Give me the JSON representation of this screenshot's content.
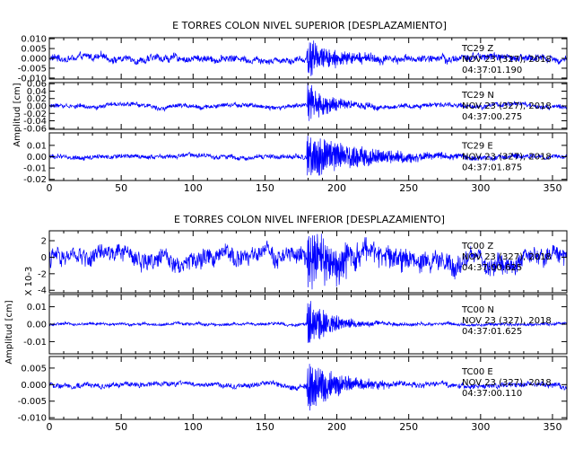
{
  "colors": {
    "trace": "#0000ff",
    "axis": "#000000",
    "background": "#ffffff"
  },
  "chart_data": [
    {
      "type": "line",
      "title": "E TORRES COLON NIVEL SUPERIOR [DESPLAZAMIENTO]",
      "ylabel": "Amplitud [cm]",
      "xlim": [
        0,
        360
      ],
      "x_ticks": [
        "0",
        "50",
        "100",
        "150",
        "200",
        "250",
        "300",
        "350"
      ],
      "channels": [
        {
          "ylim": [
            -0.0105,
            0.0105
          ],
          "y_ticks": [
            {
              "value": 0.01,
              "label": "0.010"
            },
            {
              "value": 0.005,
              "label": "0.005"
            },
            {
              "value": 0.0,
              "label": "0.000"
            },
            {
              "value": -0.005,
              "label": "-0.005"
            },
            {
              "value": -0.01,
              "label": "-0.010"
            }
          ],
          "station": "TC29",
          "component": "Z",
          "date": "NOV 23 (327), 2018",
          "time": "04:37:01.190",
          "trace": {
            "event_start": 179,
            "noise": 0.15,
            "peak": 0.95,
            "decay": 0.05
          }
        },
        {
          "ylim": [
            -0.063,
            0.063
          ],
          "y_ticks": [
            {
              "value": 0.06,
              "label": "0.06"
            },
            {
              "value": 0.04,
              "label": "0.04"
            },
            {
              "value": 0.02,
              "label": "0.02"
            },
            {
              "value": 0.0,
              "label": "0.00"
            },
            {
              "value": -0.02,
              "label": "-0.02"
            },
            {
              "value": -0.04,
              "label": "-0.04"
            },
            {
              "value": -0.06,
              "label": "-0.06"
            }
          ],
          "station": "TC29",
          "component": "N",
          "date": "NOV 23 (327), 2018",
          "time": "04:37:00.275",
          "trace": {
            "event_start": 179,
            "noise": 0.08,
            "peak": 0.95,
            "decay": 0.07
          }
        },
        {
          "ylim": [
            -0.021,
            0.021
          ],
          "y_ticks": [
            {
              "value": 0.01,
              "label": "0.01"
            },
            {
              "value": 0.0,
              "label": "0.00"
            },
            {
              "value": -0.01,
              "label": "-0.01"
            },
            {
              "value": -0.02,
              "label": "-0.02"
            }
          ],
          "station": "TC29",
          "component": "E",
          "date": "NOV 23 (327), 2018",
          "time": "04:37:01.875",
          "trace": {
            "event_start": 179,
            "noise": 0.08,
            "peak": 0.95,
            "decay": 0.025
          }
        }
      ]
    },
    {
      "type": "line",
      "title": "E TORRES COLON NIVEL INFERIOR [DESPLAZAMIENTO]",
      "ylabel": "Amplitud [cm]",
      "xlim": [
        0,
        360
      ],
      "x_ticks": [
        "0",
        "50",
        "100",
        "150",
        "200",
        "250",
        "300",
        "350"
      ],
      "channels": [
        {
          "ylim": [
            -4.3,
            3.2
          ],
          "scale_label": "X 10-3",
          "y_ticks": [
            {
              "value": 2,
              "label": "2"
            },
            {
              "value": 0,
              "label": "0"
            },
            {
              "value": -2,
              "label": "-2"
            },
            {
              "value": -4,
              "label": "-4"
            }
          ],
          "station": "TC00",
          "component": "Z",
          "date": "NOV 23 (327), 2018",
          "time": "04:37:00.625",
          "trace": {
            "event_start": 179,
            "noise": 0.25,
            "peak": 0.95,
            "decay": 0.03
          }
        },
        {
          "ylim": [
            -0.017,
            0.017
          ],
          "y_ticks": [
            {
              "value": 0.01,
              "label": "0.01"
            },
            {
              "value": 0.0,
              "label": "0.00"
            },
            {
              "value": -0.01,
              "label": "-0.01"
            }
          ],
          "station": "TC00",
          "component": "N",
          "date": "NOV 23 (327), 2018",
          "time": "04:37:01.625",
          "trace": {
            "event_start": 179,
            "noise": 0.04,
            "peak": 0.95,
            "decay": 0.07
          }
        },
        {
          "ylim": [
            -0.0105,
            0.0085
          ],
          "y_ticks": [
            {
              "value": 0.005,
              "label": "0.005"
            },
            {
              "value": 0.0,
              "label": "0.000"
            },
            {
              "value": -0.005,
              "label": "-0.005"
            },
            {
              "value": -0.01,
              "label": "-0.010"
            }
          ],
          "station": "TC00",
          "component": "E",
          "date": "NOV 23 (327), 2018",
          "time": "04:37:00.110",
          "trace": {
            "event_start": 179,
            "noise": 0.07,
            "peak": 0.9,
            "decay": 0.05
          }
        }
      ]
    }
  ]
}
